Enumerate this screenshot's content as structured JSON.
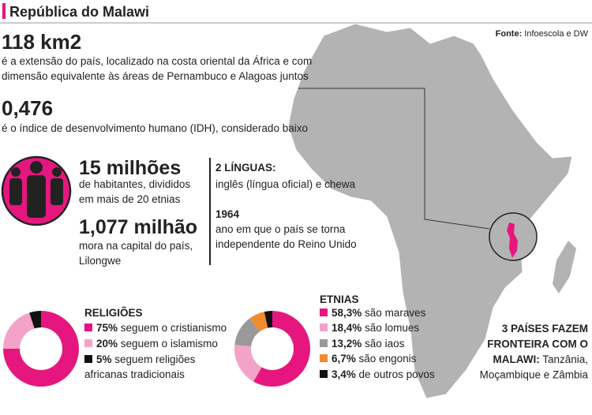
{
  "header": {
    "title": "República do Malawi",
    "source_label": "Fonte:",
    "source": "Infoescola e DW"
  },
  "area": {
    "figure": "118 km2",
    "lines": [
      "é a extensão do país, localizado na costa oriental da África e com",
      "dimensão equivalente às áreas de Pernambuco e Alagoas juntos"
    ]
  },
  "hdi": {
    "figure": "0,476",
    "lines": [
      "é o índice de desenvolvimento humano (IDH), considerado baixo"
    ]
  },
  "population": {
    "figure": "15 milhões",
    "lines": [
      "de habitantes, divididos",
      "em mais de 20 etnias"
    ]
  },
  "capital": {
    "figure": "1,077 milhão",
    "lines": [
      "mora na capital do país,",
      "Lilongwe"
    ]
  },
  "languages": {
    "heading": "2 LÍNGUAS:",
    "lines": [
      "inglês (língua oficial) e chewa"
    ]
  },
  "independence": {
    "heading": "1964",
    "lines": [
      "ano em que o país se torna",
      "independente do Reino Unido"
    ]
  },
  "religions": {
    "heading": "RELIGIÕES",
    "items": [
      {
        "value": 75,
        "value_label": "75%",
        "lines": [
          "seguem o cristianismo"
        ],
        "color": "#e5177e"
      },
      {
        "value": 20,
        "value_label": "20%",
        "lines": [
          "seguem o islamismo"
        ],
        "color": "#f4a3c8"
      },
      {
        "value": 5,
        "value_label": "5%",
        "lines": [
          "seguem religiões",
          "africanas tradicionais"
        ],
        "color": "#111111"
      }
    ]
  },
  "ethnicities": {
    "heading": "ETNIAS",
    "items": [
      {
        "value": 58.3,
        "value_label": "58,3%",
        "lines": [
          "são maraves"
        ],
        "color": "#e5177e"
      },
      {
        "value": 18.4,
        "value_label": "18,4%",
        "lines": [
          "são lomues"
        ],
        "color": "#f4a3c8"
      },
      {
        "value": 13.2,
        "value_label": "13,2%",
        "lines": [
          "são iaos"
        ],
        "color": "#999999"
      },
      {
        "value": 6.7,
        "value_label": "6,7%",
        "lines": [
          "são engonis"
        ],
        "color": "#f28a2e"
      },
      {
        "value": 3.4,
        "value_label": "3,4%",
        "lines": [
          "de outros povos"
        ],
        "color": "#111111"
      }
    ]
  },
  "borders": {
    "heading_lines": [
      "3 PAÍSES FAZEM",
      "FRONTEIRA COM O",
      "MALAWI:"
    ],
    "country_lines": [
      "Tanzânia,",
      "Moçambique e Zâmbia"
    ]
  }
}
